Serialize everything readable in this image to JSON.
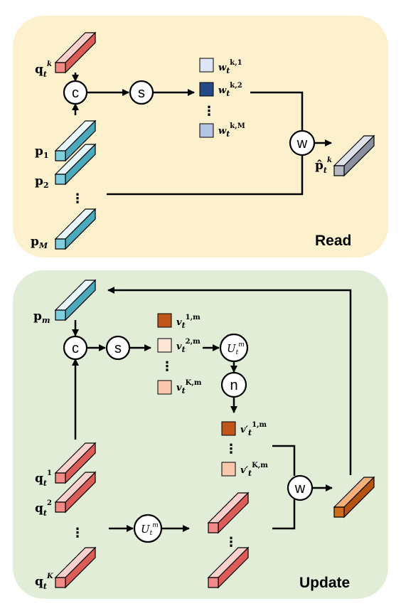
{
  "panels": {
    "read": {
      "title": "Read",
      "bg": "#fdf0cc",
      "ops": {
        "concat": "c",
        "softmax": "s",
        "weight": "w"
      },
      "query": {
        "base": "q",
        "sub": "t",
        "sup": "k"
      },
      "prototypes": [
        {
          "base": "p",
          "sub": "1"
        },
        {
          "base": "p",
          "sub": "2"
        },
        {
          "base": "p",
          "sub": "M"
        }
      ],
      "weights": [
        {
          "base": "w",
          "sub": "t",
          "sup": "k,1",
          "color": "#dde6f5"
        },
        {
          "base": "w",
          "sub": "t",
          "sup": "k,2",
          "color": "#264a86"
        },
        {
          "base": "w",
          "sub": "t",
          "sup": "k,M",
          "color": "#b4c4e2"
        }
      ],
      "output": {
        "base": "p̂",
        "sub": "t",
        "sup": "k"
      },
      "ellipsis": "⋮"
    },
    "update": {
      "title": "Update",
      "bg": "#e2edd8",
      "ops": {
        "concat": "c",
        "softmax": "s",
        "normalize": "n",
        "weight": "w"
      },
      "transform": {
        "base": "U",
        "sub": "t",
        "sup": "m"
      },
      "prototype": {
        "base": "p",
        "sub": "m"
      },
      "queries": [
        {
          "base": "q",
          "sub": "t",
          "sup": "1"
        },
        {
          "base": "q",
          "sub": "t",
          "sup": "2"
        },
        {
          "base": "q",
          "sub": "t",
          "sup": "K"
        }
      ],
      "scores": [
        {
          "base": "v",
          "sub": "t",
          "sup": "1,m",
          "color": "#c0561a"
        },
        {
          "base": "v",
          "sub": "t",
          "sup": "2,m",
          "color": "#fde5d8"
        },
        {
          "base": "v",
          "sub": "t",
          "sup": "K,m",
          "color": "#f9c7ab"
        }
      ],
      "norm_scores": [
        {
          "base": "v′",
          "sub": "t",
          "sup": "1,m",
          "color": "#c0561a"
        },
        {
          "base": "v′",
          "sub": "t",
          "sup": "K,m",
          "color": "#f9c7ab"
        }
      ],
      "ellipsis": "⋮"
    }
  },
  "colors": {
    "prototype_bar": "#7fcfdf",
    "query_bar": "#f28b88",
    "read_output_bar": "#b3b8c4",
    "update_output_bar": "#d06d1a"
  }
}
